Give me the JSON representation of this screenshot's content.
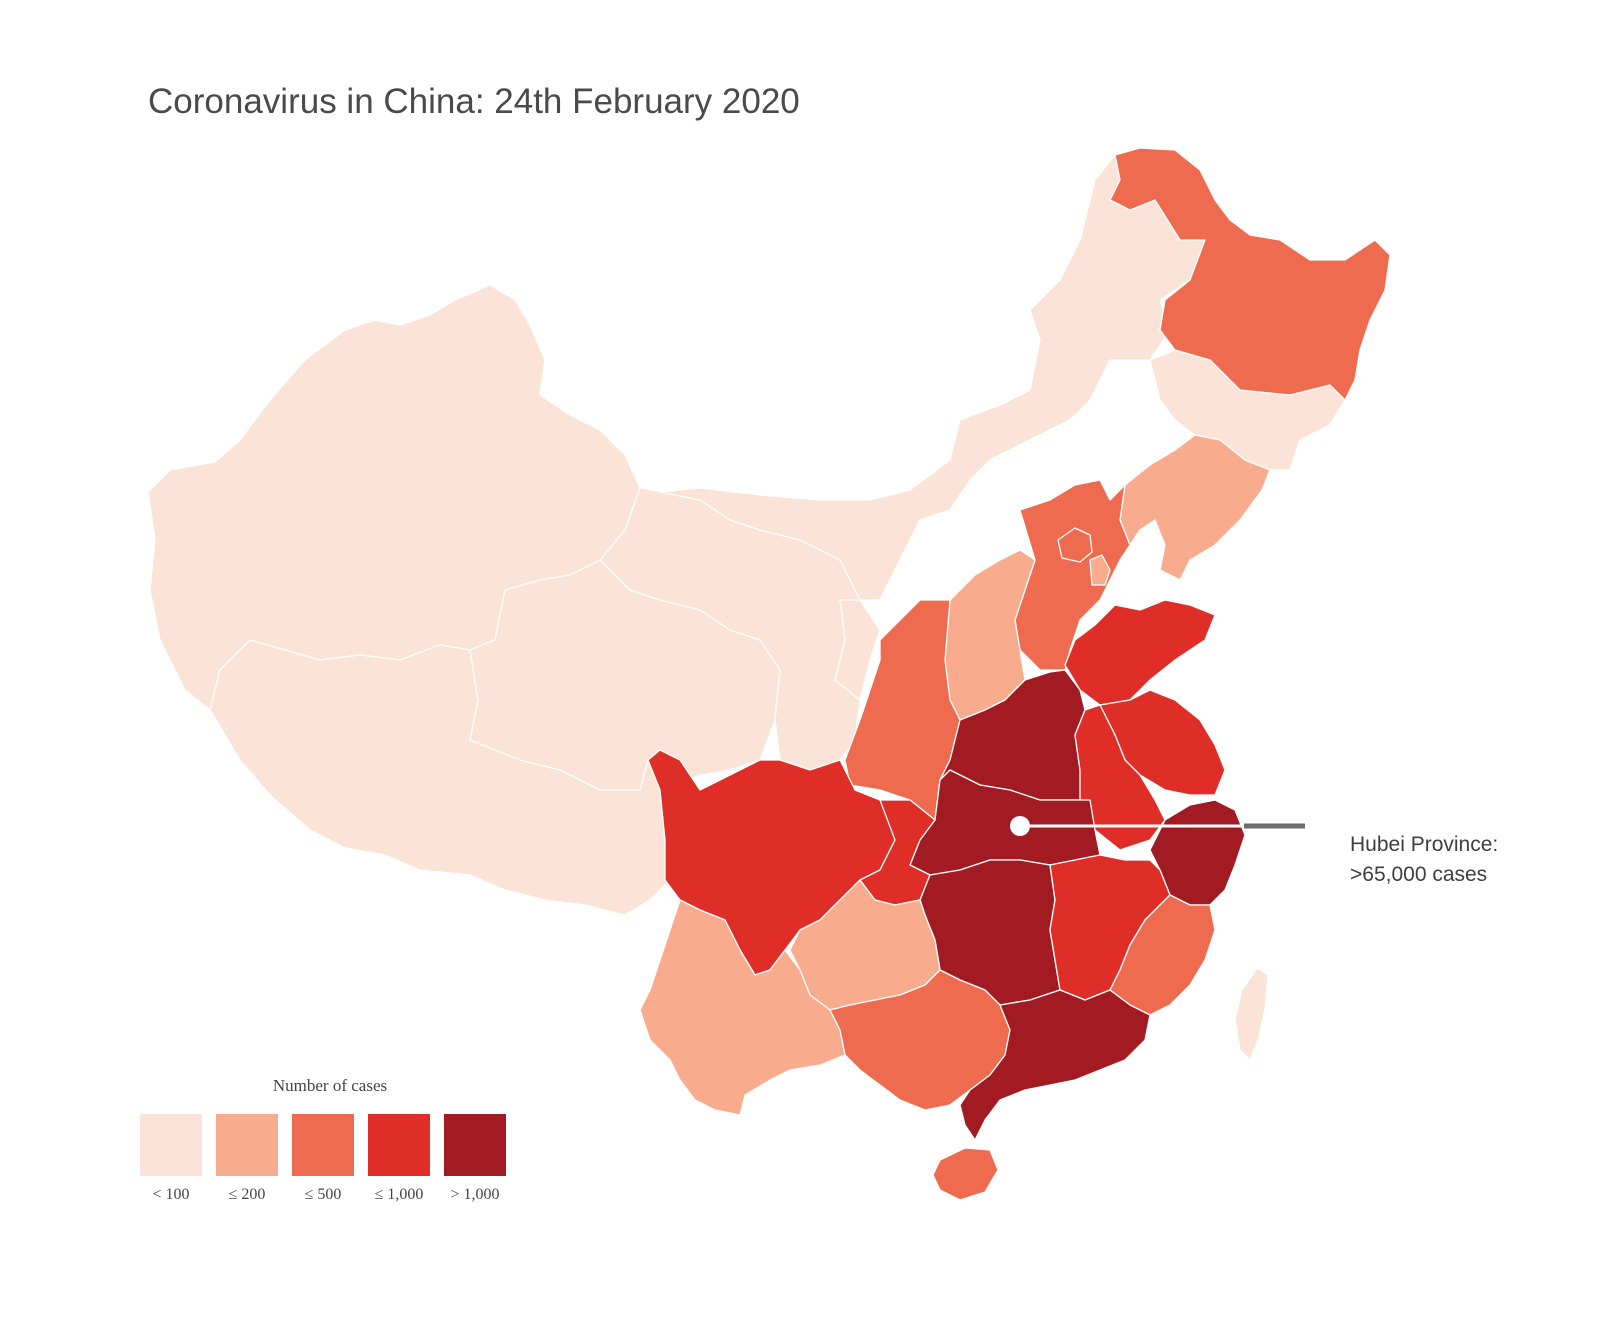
{
  "title": "Coronavirus in China: 24th February 2020",
  "annotation": {
    "line1": "Hubei Province:",
    "line2": ">65,000 cases"
  },
  "legend": {
    "title": "Number of cases",
    "items": [
      {
        "label": "< 100",
        "color": "#fce3d7"
      },
      {
        "label": "≤ 200",
        "color": "#f8ab8d"
      },
      {
        "label": "≤ 500",
        "color": "#ef6b4f"
      },
      {
        "label": "≤ 1,000",
        "color": "#df2e27"
      },
      {
        "label": "> 1,000",
        "color": "#a31b22"
      }
    ]
  },
  "annotation_colors": {
    "marker": "#ffffff",
    "connector": "#6d6d6d"
  },
  "map_regions": [
    {
      "id": "xinjiang",
      "category": "< 100"
    },
    {
      "id": "tibet",
      "category": "< 100"
    },
    {
      "id": "qinghai",
      "category": "< 100"
    },
    {
      "id": "gansu",
      "category": "< 100"
    },
    {
      "id": "inner-mongolia",
      "category": "< 100"
    },
    {
      "id": "ningxia",
      "category": "< 100"
    },
    {
      "id": "jilin",
      "category": "< 100"
    },
    {
      "id": "taiwan",
      "category": "< 100"
    },
    {
      "id": "heilongjiang",
      "category": "≤ 500"
    },
    {
      "id": "liaoning",
      "category": "≤ 200"
    },
    {
      "id": "hebei",
      "category": "≤ 500"
    },
    {
      "id": "beijing",
      "category": "≤ 500"
    },
    {
      "id": "tianjin",
      "category": "≤ 200"
    },
    {
      "id": "shanxi",
      "category": "≤ 200"
    },
    {
      "id": "shaanxi",
      "category": "≤ 500"
    },
    {
      "id": "shandong",
      "category": "≤ 1,000"
    },
    {
      "id": "henan",
      "category": "> 1,000"
    },
    {
      "id": "jiangsu",
      "category": "≤ 1,000"
    },
    {
      "id": "anhui",
      "category": "≤ 1,000"
    },
    {
      "id": "hubei",
      "category": "> 1,000"
    },
    {
      "id": "zhejiang",
      "category": "> 1,000"
    },
    {
      "id": "sichuan",
      "category": "≤ 1,000"
    },
    {
      "id": "chongqing",
      "category": "≤ 1,000"
    },
    {
      "id": "hunan",
      "category": "> 1,000"
    },
    {
      "id": "jiangxi",
      "category": "≤ 1,000"
    },
    {
      "id": "fujian",
      "category": "≤ 500"
    },
    {
      "id": "guizhou",
      "category": "≤ 200"
    },
    {
      "id": "yunnan",
      "category": "≤ 200"
    },
    {
      "id": "guangxi",
      "category": "≤ 500"
    },
    {
      "id": "guangdong",
      "category": "> 1,000"
    },
    {
      "id": "hainan",
      "category": "≤ 500"
    }
  ]
}
